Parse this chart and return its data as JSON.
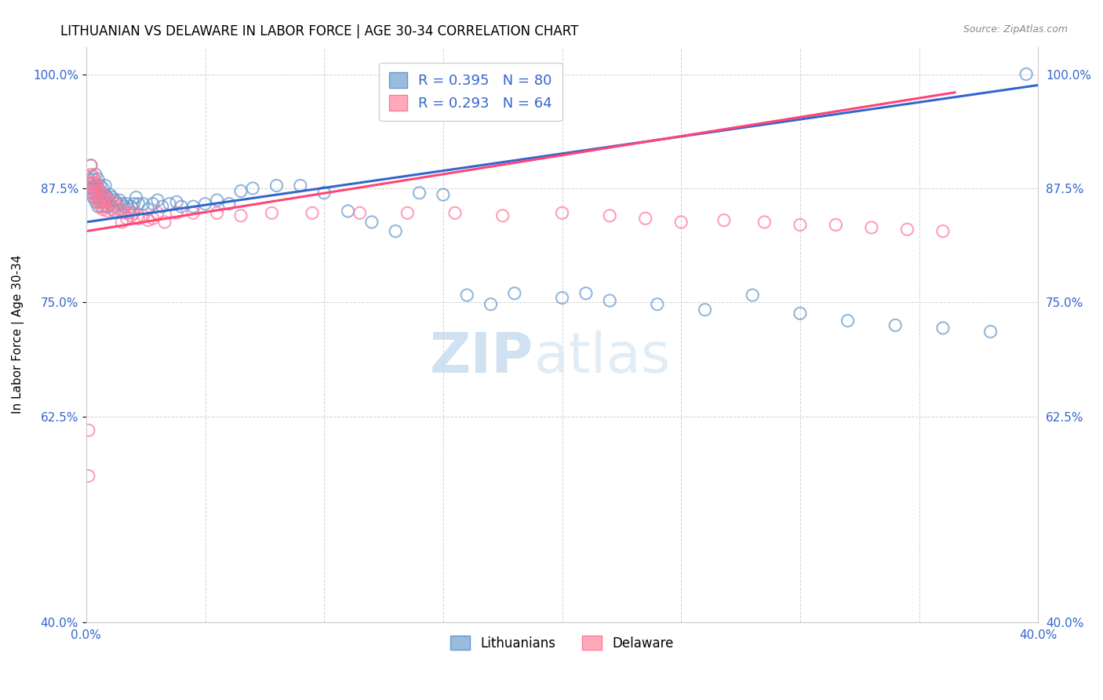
{
  "title": "LITHUANIAN VS DELAWARE IN LABOR FORCE | AGE 30-34 CORRELATION CHART",
  "source": "Source: ZipAtlas.com",
  "ylabel": "In Labor Force | Age 30-34",
  "xlim": [
    0.0,
    0.4
  ],
  "ylim": [
    0.4,
    1.03
  ],
  "xticks": [
    0.0,
    0.05,
    0.1,
    0.15,
    0.2,
    0.25,
    0.3,
    0.35,
    0.4
  ],
  "xticklabels": [
    "0.0%",
    "",
    "",
    "",
    "",
    "",
    "",
    "",
    "40.0%"
  ],
  "yticks": [
    0.4,
    0.625,
    0.75,
    0.875,
    1.0
  ],
  "yticklabels": [
    "40.0%",
    "62.5%",
    "75.0%",
    "87.5%",
    "100.0%"
  ],
  "blue_R": 0.395,
  "blue_N": 80,
  "pink_R": 0.293,
  "pink_N": 64,
  "blue_color": "#99BBDD",
  "pink_color": "#FFAABB",
  "blue_edge_color": "#6699CC",
  "pink_edge_color": "#FF7799",
  "blue_line_color": "#3366CC",
  "pink_line_color": "#FF4477",
  "legend_label_blue": "Lithuanians",
  "legend_label_pink": "Delaware",
  "watermark_zip": "ZIP",
  "watermark_atlas": "atlas",
  "title_fontsize": 12,
  "axis_label_fontsize": 11,
  "tick_fontsize": 11,
  "blue_scatter_x": [
    0.001,
    0.001,
    0.002,
    0.002,
    0.002,
    0.003,
    0.003,
    0.003,
    0.004,
    0.004,
    0.004,
    0.004,
    0.005,
    0.005,
    0.005,
    0.005,
    0.006,
    0.006,
    0.006,
    0.007,
    0.007,
    0.007,
    0.008,
    0.008,
    0.008,
    0.009,
    0.009,
    0.01,
    0.01,
    0.011,
    0.011,
    0.012,
    0.012,
    0.013,
    0.014,
    0.015,
    0.016,
    0.017,
    0.018,
    0.019,
    0.02,
    0.021,
    0.022,
    0.024,
    0.026,
    0.028,
    0.03,
    0.032,
    0.035,
    0.038,
    0.04,
    0.045,
    0.05,
    0.055,
    0.06,
    0.065,
    0.07,
    0.08,
    0.09,
    0.1,
    0.11,
    0.12,
    0.13,
    0.14,
    0.15,
    0.16,
    0.17,
    0.18,
    0.2,
    0.21,
    0.22,
    0.24,
    0.26,
    0.28,
    0.3,
    0.32,
    0.34,
    0.36,
    0.38,
    0.395
  ],
  "blue_scatter_y": [
    0.875,
    0.885,
    0.87,
    0.88,
    0.9,
    0.865,
    0.875,
    0.885,
    0.86,
    0.87,
    0.878,
    0.89,
    0.855,
    0.865,
    0.875,
    0.885,
    0.86,
    0.87,
    0.878,
    0.855,
    0.865,
    0.875,
    0.86,
    0.868,
    0.878,
    0.855,
    0.865,
    0.858,
    0.868,
    0.855,
    0.865,
    0.85,
    0.862,
    0.858,
    0.862,
    0.858,
    0.855,
    0.858,
    0.852,
    0.855,
    0.858,
    0.865,
    0.858,
    0.858,
    0.852,
    0.858,
    0.862,
    0.855,
    0.858,
    0.86,
    0.855,
    0.855,
    0.858,
    0.862,
    0.858,
    0.872,
    0.875,
    0.878,
    0.878,
    0.87,
    0.85,
    0.838,
    0.828,
    0.87,
    0.868,
    0.758,
    0.748,
    0.76,
    0.755,
    0.76,
    0.752,
    0.748,
    0.742,
    0.758,
    0.738,
    0.73,
    0.725,
    0.722,
    0.718,
    1.0
  ],
  "pink_scatter_x": [
    0.001,
    0.001,
    0.002,
    0.002,
    0.002,
    0.002,
    0.003,
    0.003,
    0.003,
    0.003,
    0.004,
    0.004,
    0.004,
    0.005,
    0.005,
    0.005,
    0.006,
    0.006,
    0.006,
    0.007,
    0.007,
    0.007,
    0.008,
    0.008,
    0.009,
    0.009,
    0.01,
    0.011,
    0.012,
    0.013,
    0.014,
    0.015,
    0.016,
    0.017,
    0.018,
    0.019,
    0.02,
    0.022,
    0.024,
    0.026,
    0.028,
    0.03,
    0.033,
    0.038,
    0.045,
    0.055,
    0.065,
    0.078,
    0.095,
    0.115,
    0.135,
    0.155,
    0.175,
    0.2,
    0.22,
    0.235,
    0.25,
    0.268,
    0.285,
    0.3,
    0.315,
    0.33,
    0.345,
    0.36
  ],
  "pink_scatter_y": [
    0.56,
    0.61,
    0.87,
    0.88,
    0.89,
    0.9,
    0.87,
    0.878,
    0.882,
    0.888,
    0.865,
    0.872,
    0.88,
    0.86,
    0.868,
    0.876,
    0.855,
    0.863,
    0.872,
    0.852,
    0.86,
    0.868,
    0.855,
    0.865,
    0.85,
    0.862,
    0.858,
    0.852,
    0.86,
    0.855,
    0.852,
    0.838,
    0.848,
    0.842,
    0.848,
    0.845,
    0.848,
    0.842,
    0.845,
    0.84,
    0.842,
    0.848,
    0.838,
    0.848,
    0.848,
    0.848,
    0.845,
    0.848,
    0.848,
    0.848,
    0.848,
    0.848,
    0.845,
    0.848,
    0.845,
    0.842,
    0.838,
    0.84,
    0.838,
    0.835,
    0.835,
    0.832,
    0.83,
    0.828
  ],
  "blue_trend_x": [
    0.0,
    0.4
  ],
  "blue_trend_y": [
    0.838,
    0.988
  ],
  "pink_trend_x": [
    0.0,
    0.365
  ],
  "pink_trend_y": [
    0.828,
    0.98
  ]
}
